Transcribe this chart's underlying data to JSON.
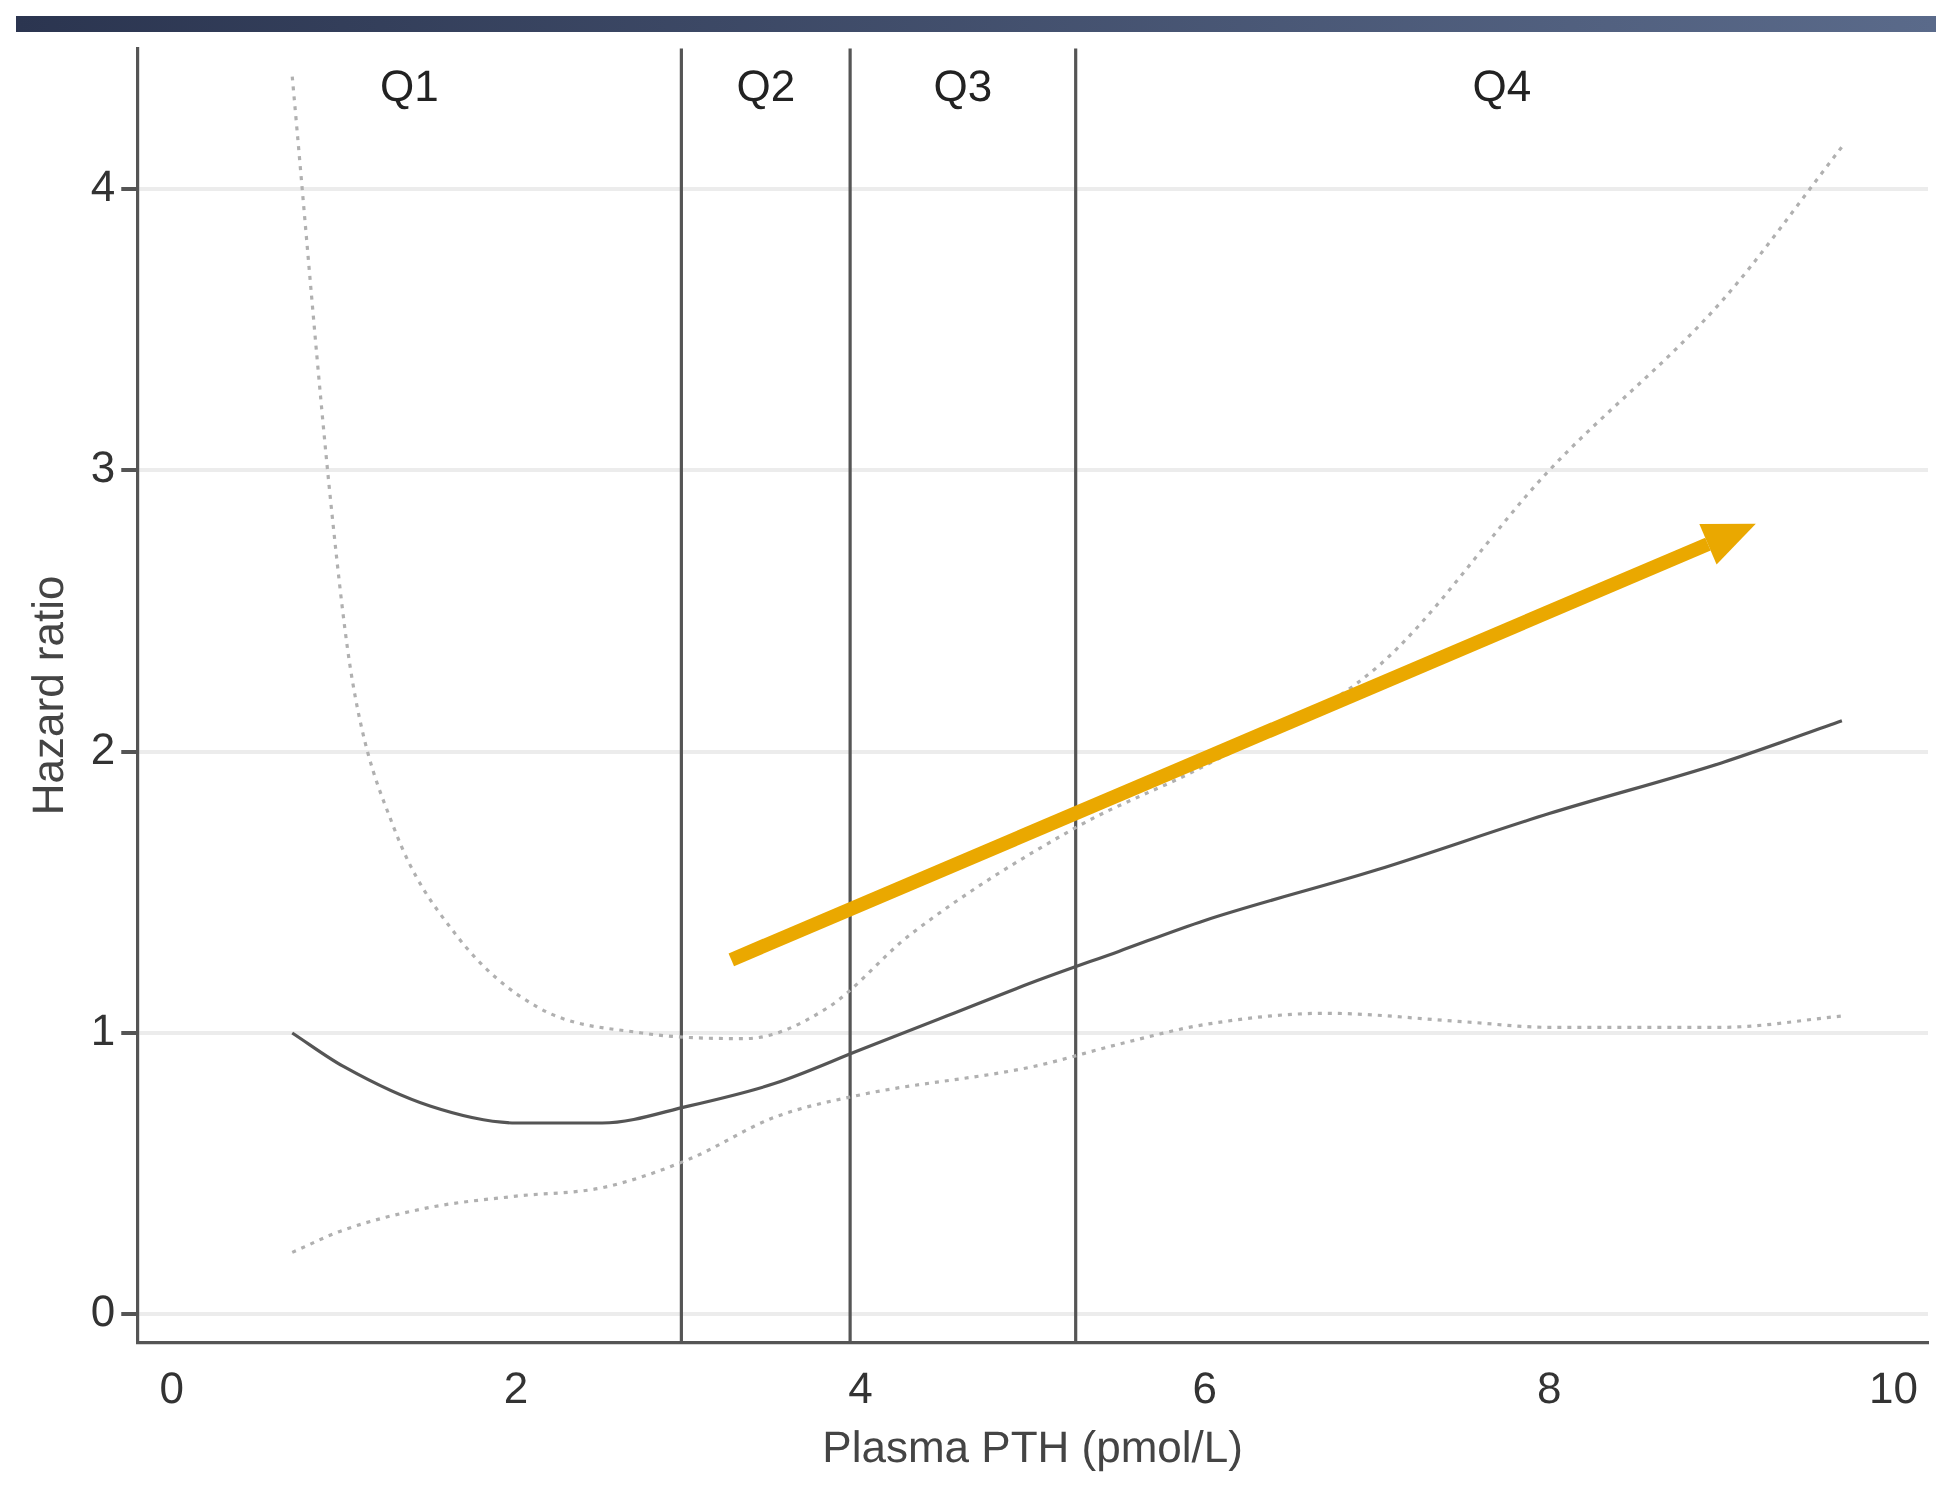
{
  "chart_data": {
    "type": "line",
    "xlabel": "Plasma PTH (pmol/L)",
    "ylabel": "Hazard ratio",
    "xlim": [
      -0.2,
      10.2
    ],
    "ylim": [
      -0.1,
      4.5
    ],
    "xticks": [
      0,
      2,
      4,
      6,
      8,
      10
    ],
    "yticks": [
      0,
      1,
      2,
      3,
      4
    ],
    "grid": "y",
    "marker": "none",
    "series": [
      {
        "color": "#555555",
        "line_style": "solid",
        "x": [
          0.7,
          1,
          1.5,
          2,
          2.5,
          3,
          3.5,
          4,
          4.5,
          5,
          5.5,
          6,
          7,
          8,
          9,
          9.7
        ],
        "values": [
          1.0,
          0.88,
          0.74,
          0.68,
          0.68,
          0.74,
          0.82,
          0.94,
          1.06,
          1.18,
          1.29,
          1.4,
          1.58,
          1.78,
          1.96,
          2.11
        ]
      },
      {
        "color": "#b0b0b0",
        "line_style": "dotted",
        "x": [
          0.7,
          0.93,
          1.05,
          1.29,
          1.65,
          2.13,
          2.73,
          3.33,
          3.81,
          4.29,
          5.25,
          6,
          7,
          8,
          9,
          9.7
        ],
        "values": [
          4.4,
          2.85,
          2.25,
          1.73,
          1.35,
          1.09,
          1.0,
          0.98,
          1.09,
          1.35,
          1.73,
          1.95,
          2.3,
          3.0,
          3.6,
          4.15
        ]
      },
      {
        "color": "#b0b0b0",
        "line_style": "dotted",
        "x": [
          0.7,
          1,
          1.5,
          2,
          2.5,
          3,
          3.5,
          4,
          5,
          5.5,
          6,
          6.7,
          7.5,
          8,
          9,
          9.7
        ],
        "values": [
          0.22,
          0.3,
          0.38,
          0.42,
          0.45,
          0.55,
          0.7,
          0.78,
          0.88,
          0.96,
          1.03,
          1.07,
          1.04,
          1.02,
          1.02,
          1.06
        ]
      }
    ],
    "ref_lines": [
      {
        "axis": "x",
        "value": 2.96,
        "color": "#555555"
      },
      {
        "axis": "x",
        "value": 3.94,
        "color": "#555555"
      },
      {
        "axis": "x",
        "value": 5.25,
        "color": "#555555"
      }
    ],
    "annotations": [
      "Q1",
      "Q2",
      "Q3",
      "Q4"
    ]
  }
}
